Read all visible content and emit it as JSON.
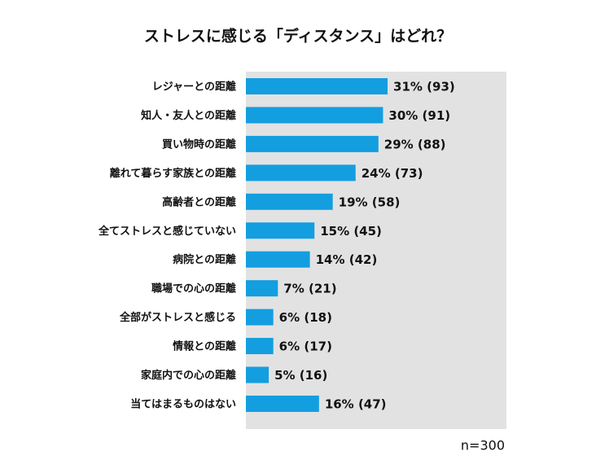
{
  "chart_data": {
    "type": "bar",
    "orientation": "horizontal",
    "title": "ストレスに感じる「ディスタンス」はどれ？",
    "categories": [
      "レジャーとの距離",
      "知人・友人との距離",
      "買い物時の距離",
      "離れて暮らす家族との距離",
      "高齢者との距離",
      "全てストレスと感じていない",
      "病院との距離",
      "職場での心の距離",
      "全部がストレスと感じる",
      "情報との距離",
      "家庭内での心の距離",
      "当てはまるものはない"
    ],
    "values": [
      31,
      30,
      29,
      24,
      19,
      15,
      14,
      7,
      6,
      6,
      5,
      16
    ],
    "value_labels": [
      "31% (93)",
      "30% (91)",
      "29% (88)",
      "24% (73)",
      "19% (58)",
      "15% (45)",
      "14% (42)",
      "7% (21)",
      "6% (18)",
      "6% (17)",
      "5% (16)",
      "16% (47)"
    ],
    "color": "#139ee0",
    "xlim": [
      0,
      57
    ],
    "note": "n=300"
  }
}
